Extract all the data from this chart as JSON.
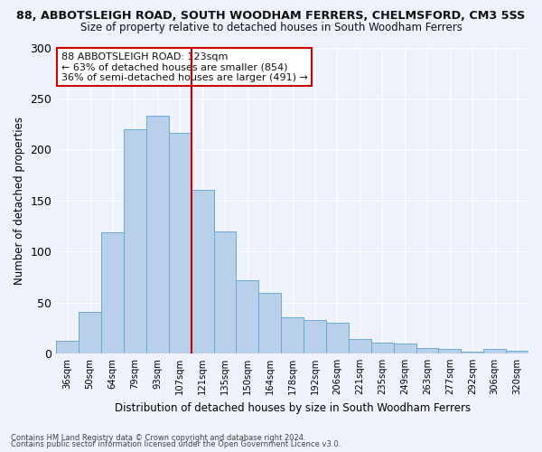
{
  "title": "88, ABBOTSLEIGH ROAD, SOUTH WOODHAM FERRERS, CHELMSFORD, CM3 5SS",
  "subtitle": "Size of property relative to detached houses in South Woodham Ferrers",
  "xlabel": "Distribution of detached houses by size in South Woodham Ferrers",
  "ylabel": "Number of detached properties",
  "categories": [
    "36sqm",
    "50sqm",
    "64sqm",
    "79sqm",
    "93sqm",
    "107sqm",
    "121sqm",
    "135sqm",
    "150sqm",
    "164sqm",
    "178sqm",
    "192sqm",
    "206sqm",
    "221sqm",
    "235sqm",
    "249sqm",
    "263sqm",
    "277sqm",
    "292sqm",
    "306sqm",
    "320sqm"
  ],
  "values": [
    12,
    41,
    119,
    220,
    233,
    216,
    160,
    120,
    72,
    59,
    35,
    33,
    30,
    14,
    11,
    10,
    5,
    4,
    2,
    4,
    3
  ],
  "bar_color": "#b8d0ea",
  "bar_edge_color": "#6aaad4",
  "vline_x_index": 6,
  "vline_color": "#cc0000",
  "annotation_line1": "88 ABBOTSLEIGH ROAD: 123sqm",
  "annotation_line2": "← 63% of detached houses are smaller (854)",
  "annotation_line3": "36% of semi-detached houses are larger (491) →",
  "annotation_box_color": "#ffffff",
  "annotation_border_color": "#cc0000",
  "footnote1": "Contains HM Land Registry data © Crown copyright and database right 2024.",
  "footnote2": "Contains public sector information licensed under the Open Government Licence v3.0.",
  "background_color": "#eef2fa",
  "grid_color": "#ffffff",
  "ylim": [
    0,
    300
  ],
  "yticks": [
    0,
    50,
    100,
    150,
    200,
    250,
    300
  ]
}
